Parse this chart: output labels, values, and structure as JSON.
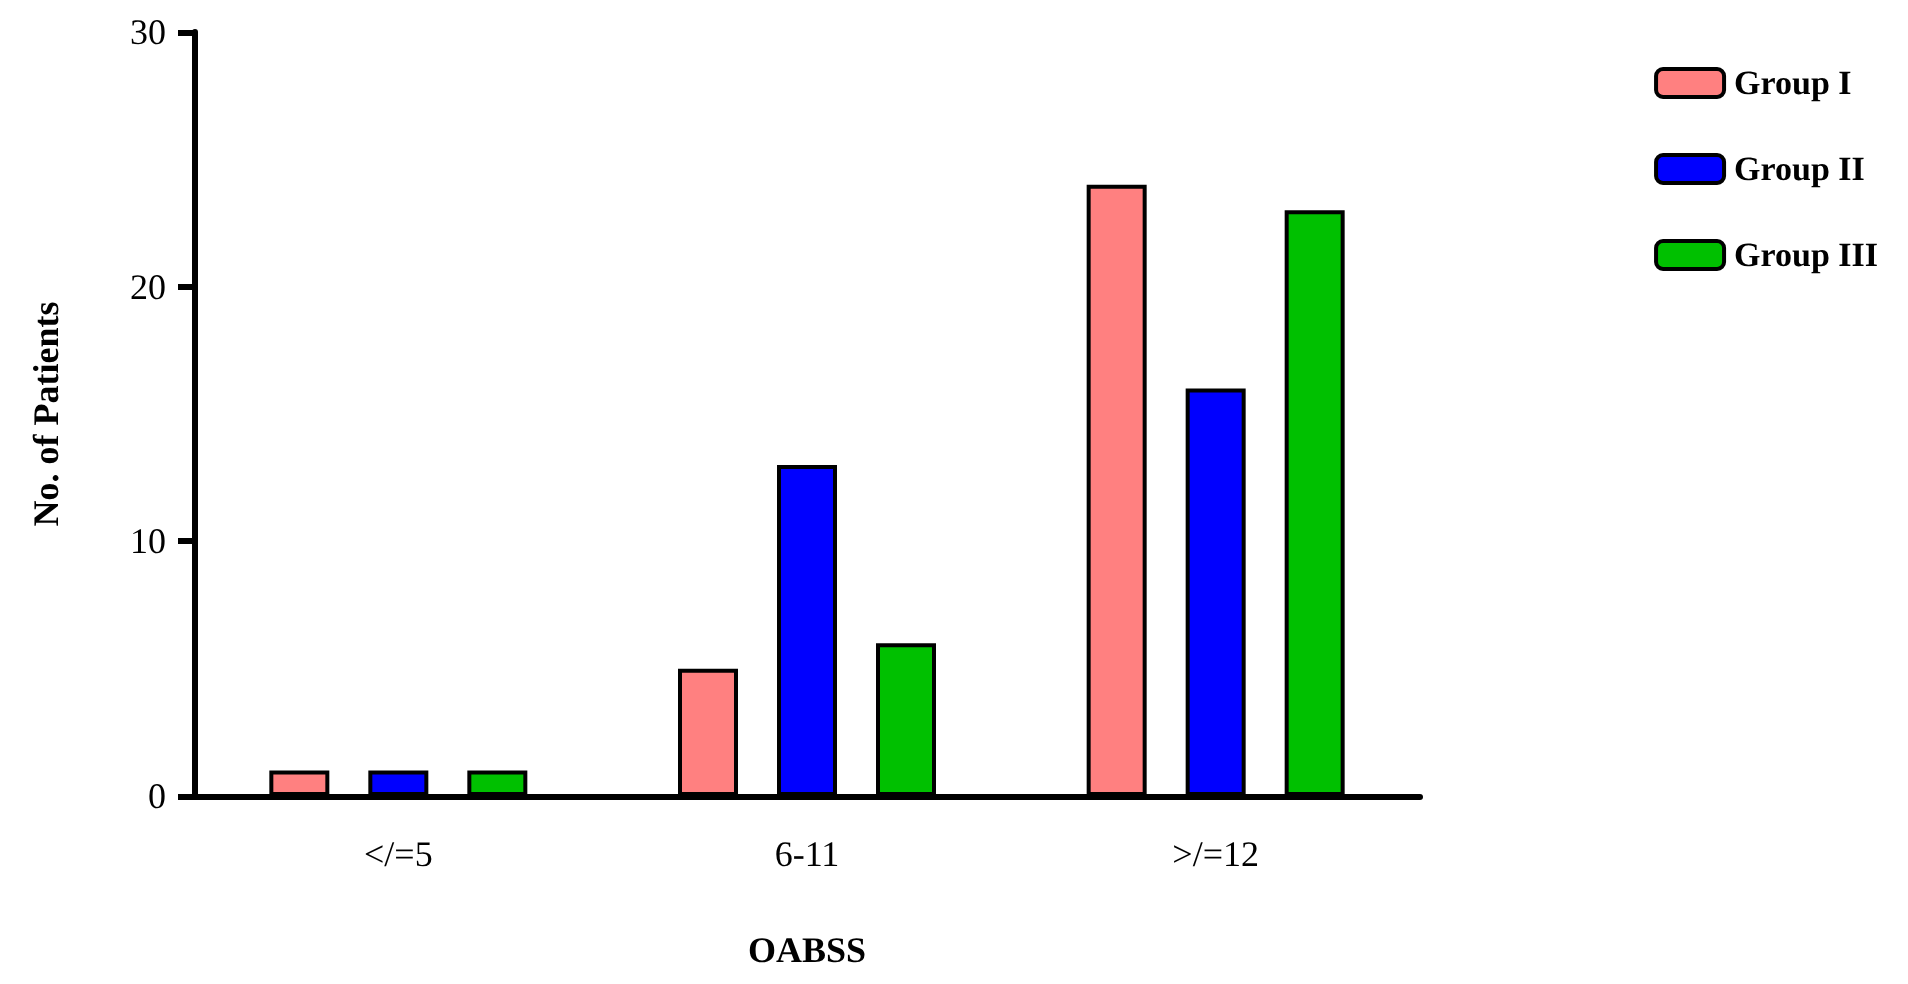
{
  "chart_data": {
    "type": "bar",
    "xlabel": "OABSS",
    "ylabel": "No. of Patients",
    "categories": [
      "</=5",
      "6-11",
      ">/=12"
    ],
    "series": [
      {
        "name": "Group I",
        "color": "#ff8080",
        "values": [
          1,
          5,
          24
        ]
      },
      {
        "name": "Group II",
        "color": "#0000ff",
        "values": [
          1,
          13,
          16
        ]
      },
      {
        "name": "Group III",
        "color": "#00c000",
        "values": [
          1,
          6,
          23
        ]
      }
    ],
    "ylim": [
      0,
      30
    ],
    "yticks": [
      0,
      10,
      20,
      30
    ],
    "grid": false,
    "legend": "top right"
  }
}
